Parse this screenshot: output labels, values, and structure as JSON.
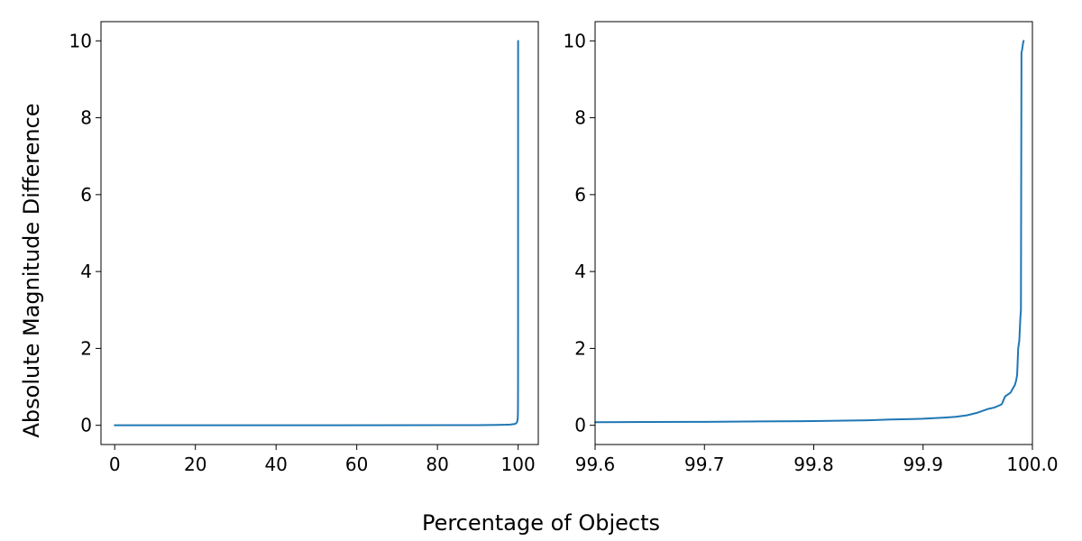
{
  "figure": {
    "xlabel": "Percentage of Objects",
    "ylabel": "Absolute Magnitude Difference"
  },
  "chart_data": [
    {
      "type": "line",
      "title": "",
      "xlabel": "",
      "ylabel": "",
      "xlim": [
        -3.4,
        105
      ],
      "ylim": [
        -0.5,
        10.5
      ],
      "xticks": [
        0,
        20,
        40,
        60,
        80,
        100
      ],
      "xtick_labels": [
        "0",
        "20",
        "40",
        "60",
        "80",
        "100"
      ],
      "yticks": [
        0,
        2,
        4,
        6,
        8,
        10
      ],
      "ytick_labels": [
        "0",
        "2",
        "4",
        "6",
        "8",
        "10"
      ],
      "grid": false,
      "color": "#1f77b4",
      "series": [
        {
          "x": [
            0,
            50,
            90,
            95,
            97,
            98,
            99,
            99.5,
            99.7,
            99.8,
            99.9,
            99.95,
            99.97,
            99.98,
            99.985,
            99.99,
            99.995,
            100
          ],
          "y": [
            0,
            0,
            0.005,
            0.01,
            0.015,
            0.02,
            0.03,
            0.05,
            0.08,
            0.11,
            0.17,
            0.3,
            0.55,
            0.95,
            1.2,
            2.8,
            9.7,
            10
          ]
        }
      ]
    },
    {
      "type": "line",
      "title": "",
      "xlabel": "",
      "ylabel": "",
      "xlim": [
        99.6,
        100.0
      ],
      "ylim": [
        -0.5,
        10.5
      ],
      "xticks": [
        99.6,
        99.7,
        99.8,
        99.9,
        100.0
      ],
      "xtick_labels": [
        "99.6",
        "99.7",
        "99.8",
        "99.9",
        "100.0"
      ],
      "yticks": [
        0,
        2,
        4,
        6,
        8,
        10
      ],
      "ytick_labels": [
        "0",
        "2",
        "4",
        "6",
        "8",
        "10"
      ],
      "grid": false,
      "color": "#1f77b4",
      "series": [
        {
          "x": [
            99.6,
            99.65,
            99.7,
            99.75,
            99.8,
            99.85,
            99.87,
            99.9,
            99.92,
            99.93,
            99.94,
            99.95,
            99.96,
            99.965,
            99.97,
            99.972,
            99.975,
            99.98,
            99.982,
            99.984,
            99.985,
            99.986,
            99.987,
            99.988,
            99.989,
            99.9895,
            99.99,
            99.9905,
            99.991,
            99.9915,
            99.992
          ],
          "y": [
            0.08,
            0.085,
            0.09,
            0.1,
            0.11,
            0.13,
            0.15,
            0.17,
            0.2,
            0.22,
            0.26,
            0.33,
            0.43,
            0.46,
            0.52,
            0.55,
            0.75,
            0.85,
            0.95,
            1.05,
            1.15,
            1.3,
            2.0,
            2.2,
            2.8,
            3.0,
            9.7,
            9.75,
            9.85,
            9.95,
            10.0
          ]
        }
      ]
    }
  ]
}
